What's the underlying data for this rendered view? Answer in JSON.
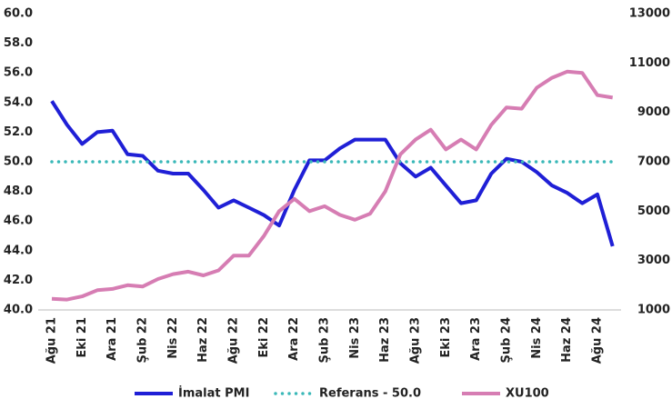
{
  "chart_data": {
    "type": "line",
    "categories": [
      "Ağu 21",
      null,
      "Eki 21",
      null,
      "Ara 21",
      null,
      "Şub 22",
      null,
      "Nis 22",
      null,
      "Haz 22",
      null,
      "Ağu 22",
      null,
      "Eki 22",
      null,
      "Ara 22",
      null,
      "Şub 23",
      null,
      "Nis 23",
      null,
      "Haz 23",
      null,
      "Ağu 23",
      null,
      "Eki 23",
      null,
      "Ara 23",
      null,
      "Şub 24",
      null,
      "Nis 24",
      null,
      "Haz 24",
      null,
      "Ağu 24",
      null
    ],
    "series": [
      {
        "name": "İmalat PMI",
        "color": "#1f1fd6",
        "values": [
          54.1,
          52.5,
          51.2,
          52.0,
          52.1,
          50.5,
          50.4,
          49.4,
          49.2,
          49.2,
          48.1,
          46.9,
          47.4,
          46.9,
          46.4,
          45.7,
          48.1,
          50.1,
          50.1,
          50.9,
          51.5,
          51.5,
          51.5,
          49.9,
          49.0,
          49.6,
          48.4,
          47.2,
          47.4,
          49.2,
          50.2,
          50.0,
          49.3,
          48.4,
          47.9,
          47.2,
          47.8,
          44.3
        ]
      },
      {
        "name": "Referans - 50.0",
        "color": "#3ab8b8",
        "dotted": true,
        "values": [
          50,
          50,
          50,
          50,
          50,
          50,
          50,
          50,
          50,
          50,
          50,
          50,
          50,
          50,
          50,
          50,
          50,
          50,
          50,
          50,
          50,
          50,
          50,
          50,
          50,
          50,
          50,
          50,
          50,
          50,
          50,
          50,
          50,
          50,
          50,
          50,
          50,
          50
        ]
      },
      {
        "name": "XU100",
        "color": "#d67db3",
        "axis": "y2",
        "values": [
          1450,
          1420,
          1550,
          1800,
          1850,
          2000,
          1950,
          2250,
          2450,
          2550,
          2400,
          2600,
          3200,
          3200,
          4000,
          5000,
          5500,
          5000,
          5200,
          4850,
          4650,
          4900,
          5800,
          7300,
          7900,
          8300,
          7500,
          7900,
          7500,
          8500,
          9200,
          9150,
          10000,
          10400,
          10650,
          10600,
          9700,
          9600
        ]
      }
    ],
    "ylim": [
      40,
      60
    ],
    "yticks": [
      {
        "value": 40,
        "label": "40.0"
      },
      {
        "value": 42,
        "label": "42.0"
      },
      {
        "value": 44,
        "label": "44.0"
      },
      {
        "value": 46,
        "label": "46.0"
      },
      {
        "value": 48,
        "label": "48.0"
      },
      {
        "value": 50,
        "label": "50.0"
      },
      {
        "value": 52,
        "label": "52.0"
      },
      {
        "value": 54,
        "label": "54.0"
      },
      {
        "value": 56,
        "label": "56.0"
      },
      {
        "value": 58,
        "label": "58.0"
      },
      {
        "value": 60,
        "label": "60.0"
      }
    ],
    "y2lim": [
      1000,
      13000
    ],
    "y2ticks": [
      1000,
      3000,
      5000,
      7000,
      9000,
      11000,
      13000
    ],
    "legend": "bottom"
  }
}
